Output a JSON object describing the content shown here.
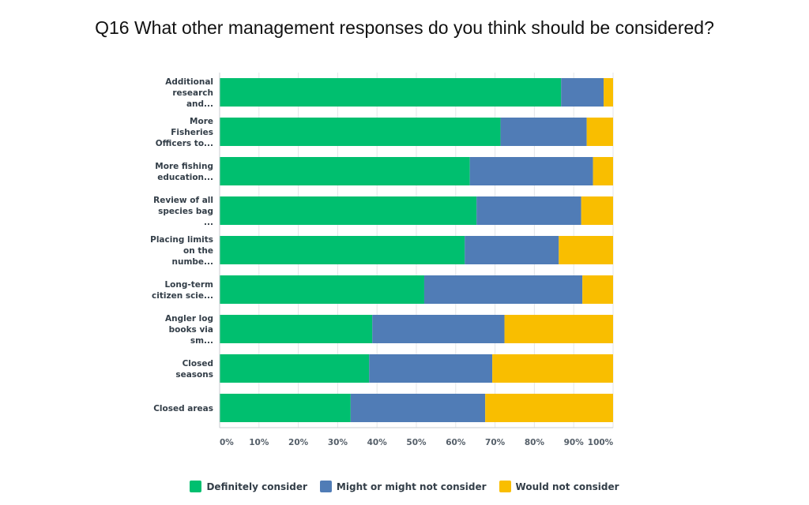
{
  "chart_data": {
    "type": "bar",
    "orientation": "horizontal",
    "stacked": true,
    "title": "Q16 What other management responses do you think should be considered?",
    "categories": [
      [
        "Additional",
        "research",
        "and..."
      ],
      [
        "More",
        "Fisheries",
        "Officers to..."
      ],
      [
        "More fishing",
        "education..."
      ],
      [
        "Review of all",
        "species bag",
        "..."
      ],
      [
        "Placing limits",
        "on the",
        "numbe..."
      ],
      [
        "Long-term",
        "citizen scie..."
      ],
      [
        "Angler log",
        "books via",
        "sm..."
      ],
      [
        "Closed",
        "seasons"
      ],
      [
        "Closed areas"
      ]
    ],
    "series": [
      {
        "name": "Definitely consider",
        "color": "#00bf6f",
        "values": [
          86.8,
          71.4,
          63.6,
          65.3,
          62.3,
          52.0,
          38.8,
          38.0,
          33.3
        ]
      },
      {
        "name": "Might or might not consider",
        "color": "#507cb6",
        "values": [
          10.8,
          21.9,
          31.3,
          26.6,
          23.9,
          40.2,
          33.6,
          31.3,
          34.2
        ]
      },
      {
        "name": "Would not consider",
        "color": "#f9be00",
        "values": [
          2.4,
          6.7,
          5.1,
          8.1,
          13.8,
          7.8,
          27.6,
          30.7,
          32.5
        ]
      }
    ],
    "xticks": [
      "0%",
      "10%",
      "20%",
      "30%",
      "40%",
      "50%",
      "60%",
      "70%",
      "80%",
      "90%",
      "100%"
    ],
    "xlim": [
      0,
      100
    ],
    "grid": true,
    "legend": "bottom"
  }
}
